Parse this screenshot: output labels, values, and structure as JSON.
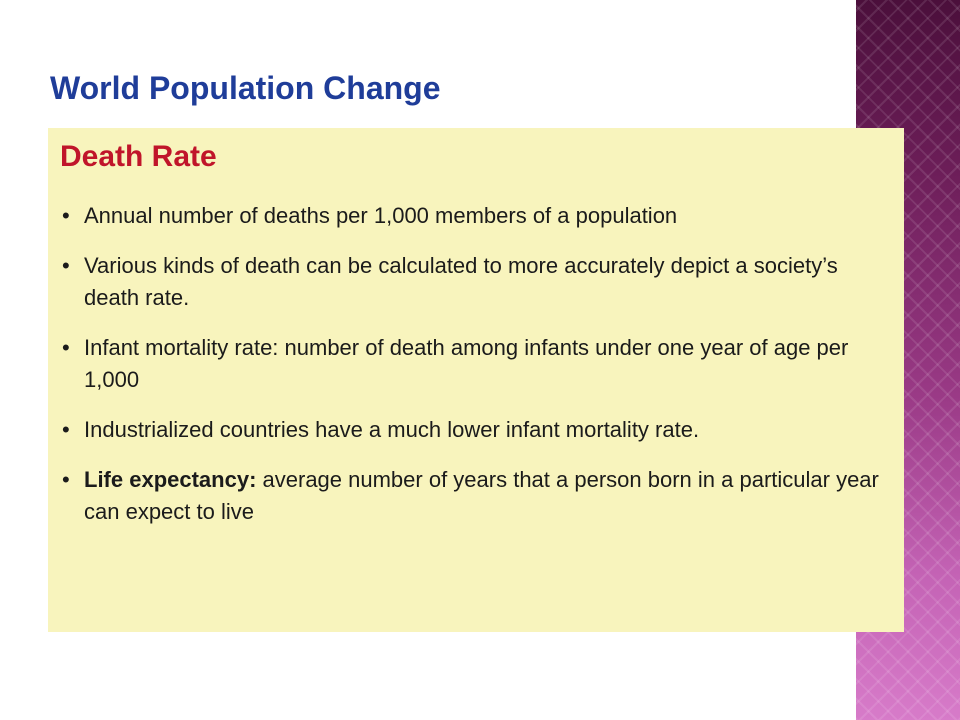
{
  "slide": {
    "title": "World Population Change"
  },
  "box": {
    "heading": "Death Rate",
    "bullet_glyph": "•",
    "items": [
      {
        "text": "Annual number of deaths per 1,000 members of a population"
      },
      {
        "text": "Various kinds of death can be calculated to more accurately depict a society’s death rate."
      },
      {
        "text": "Infant mortality rate: number of death among infants under one year of age per 1,000"
      },
      {
        "text": "Industrialized countries have a much lower infant mortality rate."
      },
      {
        "bold_text": "Life expectancy:",
        "text": " average number of years that a person born in a particular year can expect to live"
      }
    ]
  },
  "colors": {
    "title": "#1f3d99",
    "heading": "#c0152a",
    "box_background": "#f8f4bd",
    "side_band": "#9a3a86"
  }
}
